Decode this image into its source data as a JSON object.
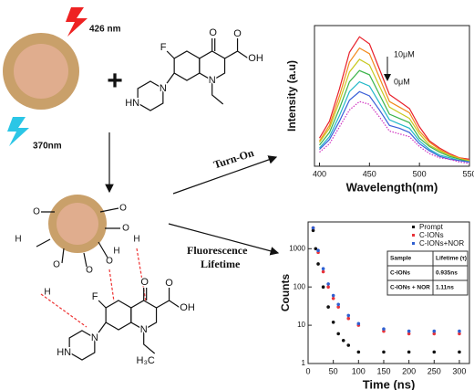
{
  "labels": {
    "excitation_red": "426 nm",
    "excitation_blue": "370nm",
    "plus": "+",
    "turn_on": "Turn-On",
    "lifetime": [
      "Fluorescence",
      "Lifetime"
    ]
  },
  "molecule_top": {
    "atoms": [
      "F",
      "O",
      "O",
      "OH",
      "N",
      "N",
      "HN"
    ]
  },
  "molecule_bottom": {
    "atoms": [
      "F",
      "O",
      "O",
      "OH",
      "N",
      "N",
      "HN",
      "H₃C"
    ]
  },
  "particle_groups": [
    "H",
    "O",
    "O",
    "H",
    "O",
    "O",
    "H",
    "O",
    "O",
    "H"
  ],
  "chart_data": [
    {
      "type": "line",
      "xlabel": "Wavelength(nm)",
      "ylabel": "Intensity (a.u)",
      "annotations": [
        "10μM",
        "0μM"
      ],
      "x": [
        400,
        410,
        420,
        430,
        440,
        450,
        460,
        470,
        480,
        490,
        500,
        510,
        520,
        530,
        540,
        550
      ],
      "xlim": [
        395,
        550
      ],
      "xticks": [
        400,
        450,
        500,
        550
      ],
      "ylim": [
        0,
        100
      ],
      "series": [
        {
          "color": "#e8202a",
          "values": [
            20,
            32,
            55,
            81,
            92,
            87,
            69,
            51,
            46,
            41,
            28,
            18,
            13,
            9,
            6,
            5
          ]
        },
        {
          "color": "#f28a1c",
          "values": [
            18,
            29,
            50,
            74,
            84,
            80,
            63,
            46,
            42,
            38,
            25,
            17,
            12,
            8,
            6,
            4
          ]
        },
        {
          "color": "#c8c81e",
          "values": [
            17,
            27,
            46,
            67,
            76,
            72,
            57,
            42,
            38,
            34,
            23,
            15,
            11,
            8,
            5,
            4
          ]
        },
        {
          "color": "#3cb44b",
          "values": [
            15,
            24,
            41,
            60,
            68,
            65,
            51,
            37,
            34,
            31,
            20,
            14,
            10,
            7,
            5,
            3
          ]
        },
        {
          "color": "#22b8c8",
          "values": [
            13,
            21,
            36,
            53,
            60,
            57,
            45,
            33,
            30,
            27,
            18,
            12,
            8,
            6,
            4,
            3
          ]
        },
        {
          "color": "#3a5fd8",
          "values": [
            12,
            19,
            32,
            47,
            53,
            50,
            40,
            29,
            27,
            24,
            16,
            11,
            7,
            5,
            4,
            3
          ]
        },
        {
          "color": "#d030c0",
          "style": "dotted",
          "values": [
            10,
            16,
            28,
            40,
            46,
            44,
            35,
            25,
            23,
            21,
            14,
            9,
            6,
            5,
            3,
            2
          ]
        }
      ]
    },
    {
      "type": "scatter",
      "xlabel": "Time (ns)",
      "ylabel": "Counts",
      "log_y": true,
      "legend": "upper right",
      "xlim": [
        0,
        320
      ],
      "xticks": [
        0,
        50,
        100,
        150,
        200,
        250,
        300
      ],
      "ylim": [
        1,
        5000
      ],
      "yticks": [
        1,
        10,
        100,
        1000
      ],
      "series": [
        {
          "name": "Prompt",
          "color": "#111111",
          "x": [
            10,
            15,
            20,
            30,
            40,
            50,
            60,
            70,
            80,
            100,
            150,
            200,
            250,
            300
          ],
          "values": [
            3000,
            1000,
            400,
            100,
            30,
            12,
            6,
            4,
            3,
            2,
            2,
            2,
            2,
            2
          ]
        },
        {
          "name": "C-IONs",
          "color": "#e8333a",
          "x": [
            10,
            20,
            30,
            40,
            50,
            60,
            80,
            100,
            150,
            200,
            250,
            300
          ],
          "values": [
            3500,
            800,
            250,
            100,
            50,
            30,
            15,
            10,
            7,
            6,
            6,
            6
          ]
        },
        {
          "name": "C-IONs+NOR",
          "color": "#2f5fd0",
          "x": [
            10,
            20,
            30,
            40,
            50,
            60,
            80,
            100,
            150,
            200,
            250,
            300
          ],
          "values": [
            3500,
            900,
            300,
            120,
            60,
            35,
            18,
            11,
            8,
            7,
            7,
            7
          ]
        }
      ],
      "table": {
        "columns": [
          "Sample",
          "Lifetime (τ)"
        ],
        "rows": [
          [
            "C-IONs",
            "0.935ns"
          ],
          [
            "C-IONs + NOR",
            "1.11ns"
          ]
        ]
      }
    }
  ]
}
